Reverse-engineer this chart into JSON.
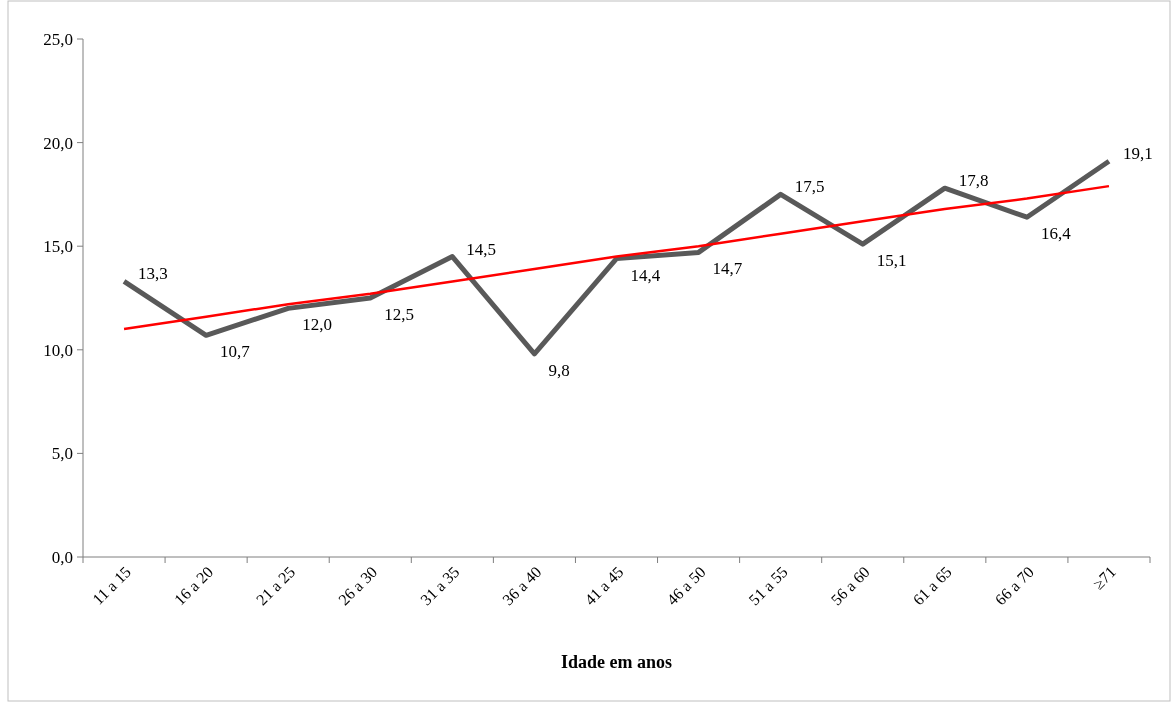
{
  "chart_data": {
    "type": "line",
    "xlabel": "Idade em anos",
    "categories": [
      "11 a 15",
      "16 a 20",
      "21 a 25",
      "26 a 30",
      "31 a 35",
      "36 a 40",
      "41 a 45",
      "46 a 50",
      "51 a 55",
      "56 a 60",
      "61 a 65",
      "66 a 70",
      "≥71"
    ],
    "series": [
      {
        "color": "#595959",
        "values": [
          13.3,
          10.7,
          12.0,
          12.5,
          14.5,
          9.8,
          14.4,
          14.7,
          17.5,
          15.1,
          17.8,
          16.4,
          19.1
        ],
        "value_labels": [
          "13,3",
          "10,7",
          "12,0",
          "12,5",
          "14,5",
          "9,8",
          "14,4",
          "14,7",
          "17,5",
          "15,1",
          "17,8",
          "16,4",
          "19,1"
        ]
      },
      {
        "color": "#ff0000",
        "values": [
          11.0,
          11.6,
          12.2,
          12.7,
          13.3,
          13.9,
          14.5,
          15.0,
          15.6,
          16.2,
          16.8,
          17.3,
          17.9
        ]
      }
    ],
    "ylim": [
      0,
      25
    ],
    "yticks": [
      {
        "value": 0,
        "label": "0,0"
      },
      {
        "value": 5,
        "label": "5,0"
      },
      {
        "value": 10,
        "label": "10,0"
      },
      {
        "value": 15,
        "label": "15,0"
      },
      {
        "value": 20,
        "label": "20,0"
      },
      {
        "value": 25,
        "label": "25,0"
      }
    ],
    "grid": false,
    "marker": "none",
    "line_style": "solid"
  }
}
